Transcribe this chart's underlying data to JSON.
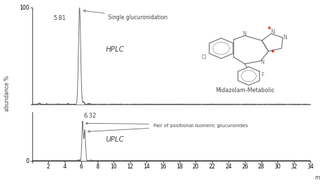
{
  "xlabel": "min",
  "ylabel": "abundance %",
  "xlim": [
    0,
    34
  ],
  "ylim_hplc": [
    0,
    100
  ],
  "ylim_uplc": [
    0,
    35
  ],
  "hplc_peak_x": 5.81,
  "hplc_peak_label": "5.81",
  "uplc_peak1_x": 6.18,
  "uplc_peak2_x": 6.45,
  "uplc_peak_label": "6.32",
  "hplc_label": "HPLC",
  "uplc_label": "UPLC",
  "annotation_hplc": "Single glucuronidation",
  "annotation_uplc": "Pair of positional isomeric glucuronides",
  "molecule_name": "Midazolam-Metabolic",
  "background_color": "#ffffff",
  "line_color": "#666666",
  "text_color": "#444444",
  "xticks": [
    0,
    2,
    4,
    6,
    8,
    10,
    12,
    14,
    16,
    18,
    20,
    22,
    24,
    26,
    28,
    30,
    32,
    34
  ]
}
